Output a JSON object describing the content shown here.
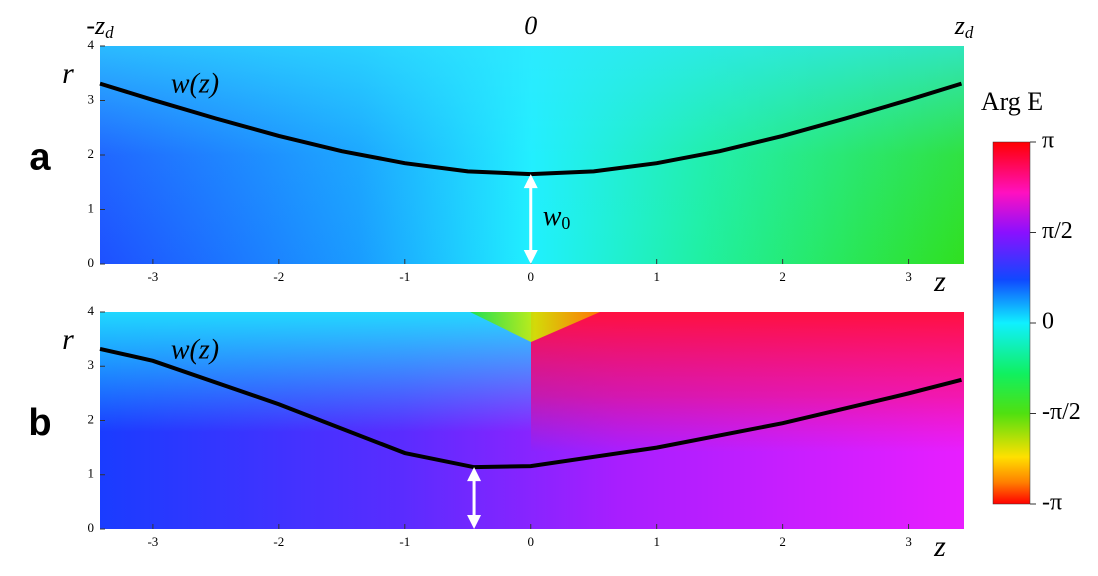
{
  "chart_data": [
    {
      "type": "line",
      "panel_label": "a",
      "x": [
        -3.42,
        -3,
        -2.5,
        -2,
        -1.5,
        -1,
        -0.5,
        0,
        0.5,
        1,
        1.5,
        2,
        2.5,
        3,
        3.42
      ],
      "series": [
        {
          "name": "w(z)",
          "color": "#000000",
          "values": [
            3.31,
            3.01,
            2.67,
            2.35,
            2.07,
            1.85,
            1.7,
            1.65,
            1.7,
            1.85,
            2.07,
            2.35,
            2.67,
            3.01,
            3.31
          ]
        }
      ],
      "xlim": [
        -3.42,
        3.44
      ],
      "ylim": [
        0,
        4
      ],
      "xticks": [
        -3,
        -2,
        -1,
        0,
        1,
        2,
        3
      ],
      "yticks": [
        0,
        1,
        2,
        3,
        4
      ],
      "xlabel": "z",
      "ylabel": "r",
      "top_ticks": [
        {
          "value": -3.42,
          "label": "-z",
          "sub": "d"
        },
        {
          "value": 0,
          "label": "0"
        },
        {
          "value": 3.44,
          "label": "z",
          "sub": "d"
        }
      ],
      "arrow": {
        "x": 0,
        "y": [
          0,
          1.65
        ],
        "label": "w",
        "sub": "0"
      }
    },
    {
      "type": "line",
      "panel_label": "b",
      "x": [
        -3.42,
        -3,
        -2,
        -1,
        -0.45,
        0,
        1,
        2,
        3,
        3.42
      ],
      "series": [
        {
          "name": "w(z)",
          "color": "#000000",
          "values": [
            3.32,
            3.1,
            2.3,
            1.4,
            1.14,
            1.16,
            1.5,
            1.95,
            2.5,
            2.75
          ]
        }
      ],
      "xlim": [
        -3.42,
        3.44
      ],
      "ylim": [
        0,
        4
      ],
      "xticks": [
        -3,
        -2,
        -1,
        0,
        1,
        2,
        3
      ],
      "yticks": [
        0,
        1,
        2,
        3,
        4
      ],
      "xlabel": "z",
      "ylabel": "r",
      "arrow": {
        "x": -0.45,
        "y": [
          0,
          1.14
        ]
      }
    }
  ],
  "colorbar": {
    "title": "Arg E",
    "lim": [
      -3.1416,
      3.1416
    ],
    "ticks": [
      {
        "value": 3.1416,
        "label": "π"
      },
      {
        "value": 1.5708,
        "label": "π/2"
      },
      0,
      {
        "value": -1.5708,
        "label": "-π/2"
      },
      {
        "value": -3.1416,
        "label": "-π"
      }
    ]
  }
}
